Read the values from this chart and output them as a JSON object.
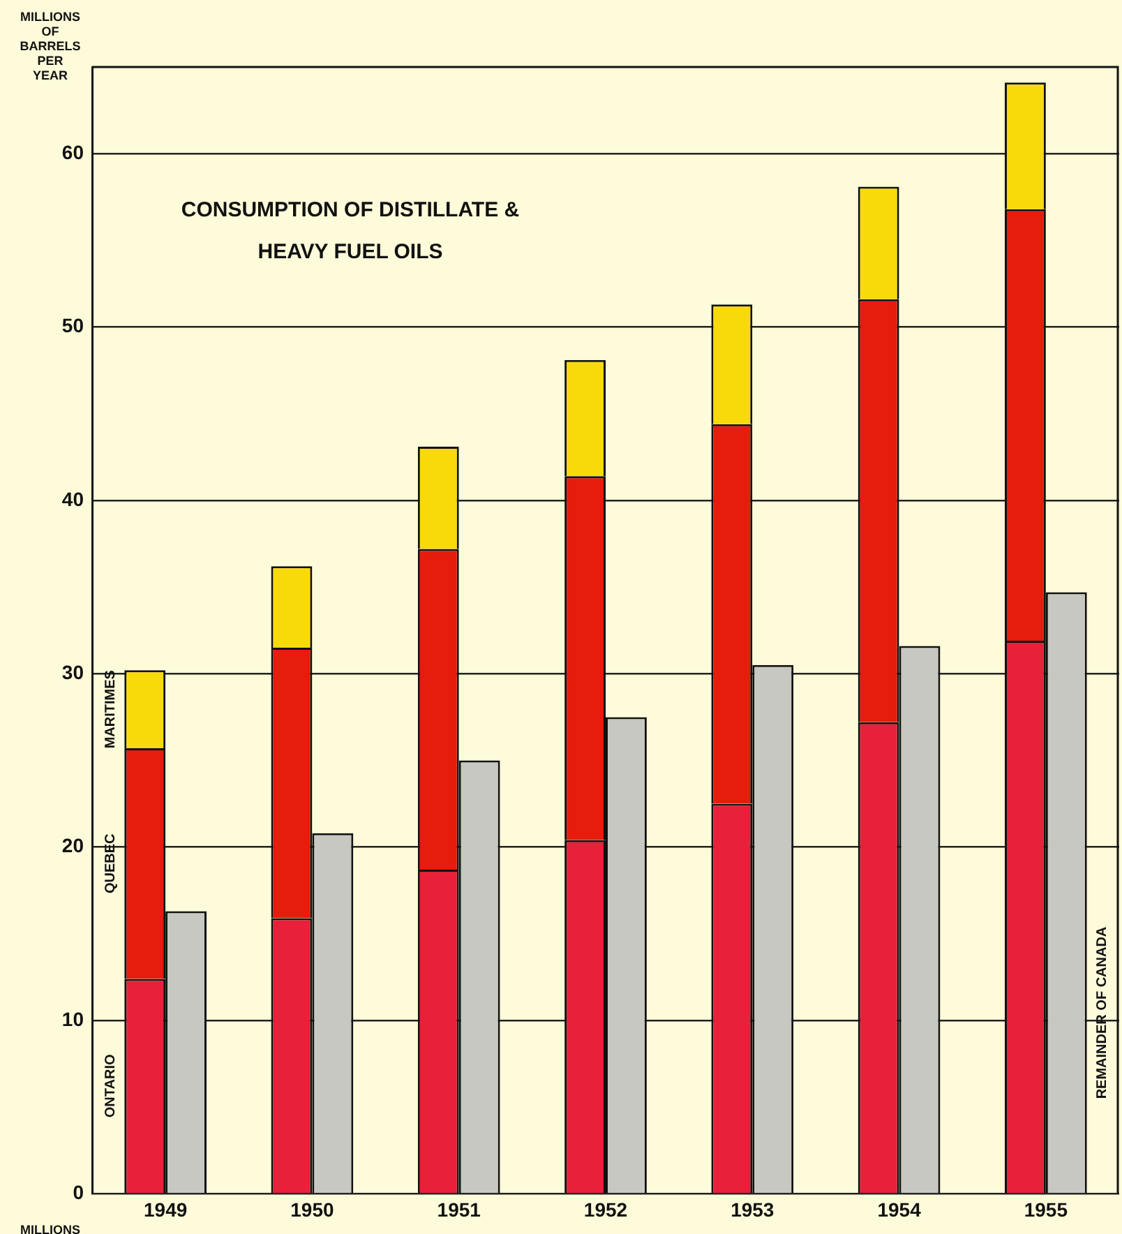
{
  "chart_data": {
    "type": "bar",
    "title": "CONSUMPTION OF DISTILLATE & HEAVY FUEL OILS",
    "ylabel": "MILLIONS OF BARRELS PER YEAR",
    "categories": [
      "1949",
      "1950",
      "1951",
      "1952",
      "1953",
      "1954",
      "1955"
    ],
    "series": [
      {
        "name": "ONTARIO",
        "color": "#e8203a",
        "base": [
          0,
          0,
          0,
          0,
          0,
          0,
          0
        ],
        "values": [
          12.4,
          15.9,
          18.7,
          20.4,
          22.5,
          27.2,
          31.9
        ]
      },
      {
        "name": "QUEBEC",
        "color": "#e61c0c",
        "base": [
          12.4,
          15.9,
          18.7,
          20.4,
          22.5,
          27.2,
          31.9
        ],
        "values": [
          13.3,
          15.6,
          18.5,
          21.0,
          21.9,
          24.4,
          24.9
        ]
      },
      {
        "name": "MARITIMES",
        "color": "#f8da0a",
        "base": [
          25.7,
          31.5,
          37.2,
          41.4,
          44.4,
          51.6,
          56.8
        ],
        "values": [
          4.5,
          4.7,
          5.9,
          6.7,
          6.9,
          6.5,
          7.3
        ]
      },
      {
        "name": "REMAINDER OF CANADA",
        "color": "#c8c8c2",
        "values": [
          16.3,
          20.8,
          25.0,
          27.5,
          30.5,
          31.6,
          34.7
        ]
      }
    ],
    "ylim": [
      0,
      65
    ],
    "yticks": [
      0,
      10,
      20,
      30,
      40,
      50,
      60
    ],
    "grid": "y",
    "legend": false,
    "annotations": [
      "MILLIONS"
    ]
  }
}
